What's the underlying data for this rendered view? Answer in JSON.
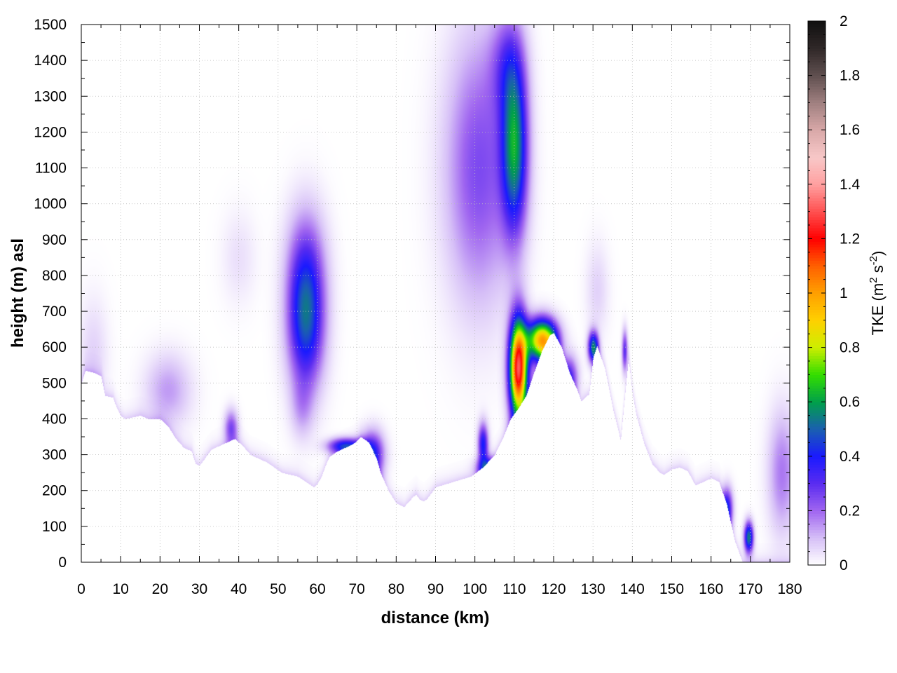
{
  "chart_data": {
    "type": "heatmap",
    "title": "",
    "xlabel": "distance (km)",
    "ylabel": "height (m) asl",
    "xlim": [
      0,
      180
    ],
    "ylim": [
      0,
      1500
    ],
    "xticks": [
      0,
      10,
      20,
      30,
      40,
      50,
      60,
      70,
      80,
      90,
      100,
      110,
      120,
      130,
      140,
      150,
      160,
      170,
      180
    ],
    "yticks": [
      0,
      100,
      200,
      300,
      400,
      500,
      600,
      700,
      800,
      900,
      1000,
      1100,
      1200,
      1300,
      1400,
      1500
    ],
    "grid": true,
    "colorbar": {
      "label": "TKE (m² s⁻²)",
      "label_base": "TKE (m",
      "label_sup1": "2",
      "label_mid": " s",
      "label_sup2": "-2",
      "label_end": ")",
      "range": [
        0,
        2
      ],
      "ticks": [
        "0",
        "0.2",
        "0.4",
        "0.6",
        "0.8",
        "1",
        "1.2",
        "1.4",
        "1.6",
        "1.8",
        "2"
      ],
      "colormap": [
        [
          0.0,
          "#ffffff"
        ],
        [
          0.1,
          "#d6bff7"
        ],
        [
          0.2,
          "#a066f0"
        ],
        [
          0.3,
          "#5a2cf0"
        ],
        [
          0.4,
          "#1a1aff"
        ],
        [
          0.5,
          "#1a5fb0"
        ],
        [
          0.6,
          "#00a04a"
        ],
        [
          0.7,
          "#33dd00"
        ],
        [
          0.8,
          "#ccee00"
        ],
        [
          0.9,
          "#ffd000"
        ],
        [
          1.0,
          "#ffa000"
        ],
        [
          1.1,
          "#ff6000"
        ],
        [
          1.2,
          "#ff0000"
        ],
        [
          1.3,
          "#ff5050"
        ],
        [
          1.4,
          "#ffa0a0"
        ],
        [
          1.5,
          "#f8c8c8"
        ],
        [
          1.6,
          "#d8a8a8"
        ],
        [
          1.7,
          "#a08080"
        ],
        [
          1.8,
          "#605050"
        ],
        [
          1.9,
          "#302828"
        ],
        [
          2.0,
          "#101010"
        ]
      ]
    },
    "terrain": [
      [
        0,
        500
      ],
      [
        1,
        535
      ],
      [
        3,
        530
      ],
      [
        5,
        520
      ],
      [
        6,
        465
      ],
      [
        8,
        460
      ],
      [
        9,
        430
      ],
      [
        10,
        410
      ],
      [
        11,
        400
      ],
      [
        13,
        405
      ],
      [
        15,
        410
      ],
      [
        17,
        400
      ],
      [
        20,
        400
      ],
      [
        22,
        380
      ],
      [
        24,
        345
      ],
      [
        26,
        320
      ],
      [
        28,
        310
      ],
      [
        29,
        275
      ],
      [
        30,
        270
      ],
      [
        31,
        285
      ],
      [
        33,
        315
      ],
      [
        35,
        325
      ],
      [
        37,
        335
      ],
      [
        39,
        345
      ],
      [
        41,
        325
      ],
      [
        43,
        300
      ],
      [
        45,
        290
      ],
      [
        47,
        280
      ],
      [
        49,
        265
      ],
      [
        51,
        250
      ],
      [
        53,
        245
      ],
      [
        55,
        240
      ],
      [
        57,
        225
      ],
      [
        59,
        210
      ],
      [
        60,
        220
      ],
      [
        61,
        240
      ],
      [
        62,
        270
      ],
      [
        63,
        295
      ],
      [
        65,
        310
      ],
      [
        67,
        320
      ],
      [
        69,
        330
      ],
      [
        71,
        350
      ],
      [
        73,
        335
      ],
      [
        75,
        290
      ],
      [
        76,
        250
      ],
      [
        78,
        200
      ],
      [
        80,
        165
      ],
      [
        82,
        155
      ],
      [
        84,
        180
      ],
      [
        85,
        190
      ],
      [
        86,
        175
      ],
      [
        87,
        170
      ],
      [
        88,
        180
      ],
      [
        90,
        210
      ],
      [
        93,
        220
      ],
      [
        96,
        230
      ],
      [
        99,
        240
      ],
      [
        102,
        265
      ],
      [
        105,
        300
      ],
      [
        107,
        345
      ],
      [
        109,
        400
      ],
      [
        111,
        430
      ],
      [
        113,
        465
      ],
      [
        115,
        530
      ],
      [
        117,
        590
      ],
      [
        119,
        635
      ],
      [
        120,
        640
      ],
      [
        122,
        600
      ],
      [
        124,
        530
      ],
      [
        126,
        480
      ],
      [
        127,
        450
      ],
      [
        129,
        470
      ],
      [
        130,
        570
      ],
      [
        131,
        605
      ],
      [
        133,
        540
      ],
      [
        135,
        430
      ],
      [
        137,
        340
      ],
      [
        139,
        570
      ],
      [
        140,
        470
      ],
      [
        141,
        410
      ],
      [
        143,
        330
      ],
      [
        145,
        275
      ],
      [
        147,
        250
      ],
      [
        148,
        245
      ],
      [
        150,
        260
      ],
      [
        152,
        265
      ],
      [
        154,
        255
      ],
      [
        156,
        215
      ],
      [
        158,
        225
      ],
      [
        160,
        235
      ],
      [
        162,
        225
      ],
      [
        164,
        160
      ],
      [
        166,
        60
      ],
      [
        168,
        0
      ],
      [
        180,
        0
      ]
    ],
    "tke_features": [
      {
        "x": 3,
        "y": 580,
        "sx": 2.5,
        "sy": 110,
        "v": 0.07
      },
      {
        "x": 22,
        "y": 480,
        "sx": 4,
        "sy": 70,
        "v": 0.14
      },
      {
        "x": 38,
        "y": 375,
        "sx": 1.2,
        "sy": 35,
        "v": 0.25
      },
      {
        "x": 40,
        "y": 850,
        "sx": 3,
        "sy": 90,
        "v": 0.05
      },
      {
        "x": 57,
        "y": 670,
        "sx": 3.2,
        "sy": 130,
        "v": 0.46
      },
      {
        "x": 57,
        "y": 840,
        "sx": 3.5,
        "sy": 120,
        "v": 0.18
      },
      {
        "x": 56,
        "y": 430,
        "sx": 2,
        "sy": 60,
        "v": 0.1
      },
      {
        "x": 67,
        "y": 325,
        "sx": 3,
        "sy": 15,
        "v": 0.42
      },
      {
        "x": 74,
        "y": 300,
        "sx": 2,
        "sy": 45,
        "v": 0.38
      },
      {
        "x": 102,
        "y": 330,
        "sx": 0.9,
        "sy": 40,
        "v": 0.4
      },
      {
        "x": 103,
        "y": 265,
        "sx": 1.8,
        "sy": 20,
        "v": 0.36
      },
      {
        "x": 101,
        "y": 1100,
        "sx": 6,
        "sy": 260,
        "v": 0.25
      },
      {
        "x": 110,
        "y": 1160,
        "sx": 2.3,
        "sy": 170,
        "v": 0.55
      },
      {
        "x": 108,
        "y": 1390,
        "sx": 3,
        "sy": 100,
        "v": 0.18
      },
      {
        "x": 111,
        "y": 540,
        "sx": 1.6,
        "sy": 95,
        "v": 1.3
      },
      {
        "x": 117,
        "y": 620,
        "sx": 2.6,
        "sy": 40,
        "v": 1.0
      },
      {
        "x": 124,
        "y": 520,
        "sx": 1.5,
        "sy": 40,
        "v": 0.28
      },
      {
        "x": 130,
        "y": 600,
        "sx": 0.9,
        "sy": 30,
        "v": 0.55
      },
      {
        "x": 131,
        "y": 760,
        "sx": 2,
        "sy": 90,
        "v": 0.07
      },
      {
        "x": 138,
        "y": 590,
        "sx": 0.5,
        "sy": 40,
        "v": 0.3
      },
      {
        "x": 164,
        "y": 150,
        "sx": 1,
        "sy": 40,
        "v": 0.4
      },
      {
        "x": 169.5,
        "y": 70,
        "sx": 0.8,
        "sy": 30,
        "v": 0.55
      },
      {
        "x": 178,
        "y": 250,
        "sx": 2.5,
        "sy": 120,
        "v": 0.18
      }
    ],
    "surface_layer": {
      "depth": 18,
      "v": 0.08
    }
  }
}
